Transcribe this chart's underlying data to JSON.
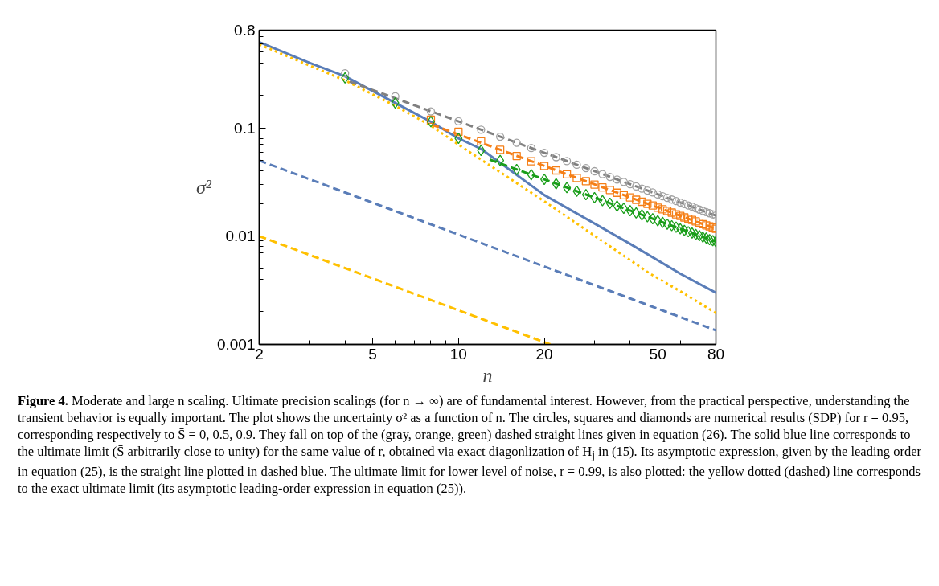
{
  "chart_data": {
    "type": "line",
    "xlabel": "n",
    "ylabel": "σ²",
    "log": "xy",
    "grid": false,
    "xlim": [
      2,
      80
    ],
    "xticks": [
      2,
      5,
      10,
      20,
      50,
      80
    ],
    "ylim": [
      0.001,
      0.8
    ],
    "yticks": [
      0.001,
      0.01,
      0.1,
      0.8
    ],
    "series": [
      {
        "line_style": "solid",
        "color": "#5a7db8",
        "x": [
          2,
          3,
          4,
          6,
          8,
          10,
          12,
          20,
          40,
          60,
          80
        ],
        "values": [
          0.62,
          0.4,
          0.3,
          0.17,
          0.114,
          0.08,
          0.064,
          0.024,
          0.0085,
          0.0045,
          0.003
        ]
      },
      {
        "line_style": "dotted",
        "color": "#ffc000",
        "x": [
          2,
          4,
          6,
          8,
          10,
          20,
          30,
          47,
          60,
          80
        ],
        "values": [
          0.59,
          0.275,
          0.16,
          0.105,
          0.07,
          0.021,
          0.0101,
          0.0045,
          0.0031,
          0.00195
        ]
      },
      {
        "line_style": "dashed",
        "color": "#5a7db8",
        "x": [
          2,
          80
        ],
        "values": [
          0.05,
          0.00135
        ]
      },
      {
        "line_style": "dashed",
        "color": "#ffc000",
        "x": [
          2,
          21
        ],
        "values": [
          0.01,
          0.001
        ]
      },
      {
        "line_style": "dashed",
        "color": "#808080",
        "x": [
          4.15,
          80
        ],
        "values": [
          0.268,
          0.0155
        ]
      },
      {
        "line_style": "dashed",
        "color": "#f57f17",
        "x": [
          8.07,
          80
        ],
        "values": [
          0.107,
          0.0117
        ]
      },
      {
        "line_style": "dashed",
        "color": "#1a9e1a",
        "x": [
          12.87,
          80
        ],
        "values": [
          0.051,
          0.0089
        ]
      },
      {
        "type": "scatter",
        "marker": "circle",
        "color": "#a0a0a0",
        "x": [
          4,
          6,
          8,
          10,
          12,
          14,
          16,
          18,
          20,
          22,
          24,
          26,
          28,
          30,
          32,
          34,
          36,
          38,
          40,
          42,
          44,
          46,
          48,
          50,
          52,
          54,
          56,
          58,
          60,
          62,
          64,
          66,
          68,
          70,
          72,
          74,
          76,
          78,
          80
        ],
        "values": [
          0.32,
          0.196,
          0.142,
          0.115,
          0.0964,
          0.083,
          0.0729,
          0.0652,
          0.0589,
          0.0537,
          0.0494,
          0.0457,
          0.0426,
          0.0398,
          0.0374,
          0.0353,
          0.0334,
          0.0317,
          0.0302,
          0.0288,
          0.0275,
          0.0264,
          0.0254,
          0.0243,
          0.0234,
          0.0226,
          0.0218,
          0.0211,
          0.0204,
          0.0198,
          0.0192,
          0.0187,
          0.0181,
          0.0176,
          0.0171,
          0.0167,
          0.0163,
          0.0159,
          0.0155
        ]
      },
      {
        "type": "scatter",
        "marker": "square",
        "color": "#f57f17",
        "x": [
          8,
          10,
          12,
          14,
          16,
          18,
          20,
          22,
          24,
          26,
          28,
          30,
          32,
          34,
          36,
          38,
          40,
          42,
          44,
          46,
          48,
          50,
          52,
          54,
          56,
          58,
          60,
          62,
          64,
          66,
          68,
          70,
          72,
          74,
          76,
          78,
          80
        ],
        "values": [
          0.119,
          0.092,
          0.075,
          0.0627,
          0.055,
          0.0492,
          0.0445,
          0.0405,
          0.0373,
          0.0345,
          0.0322,
          0.03,
          0.0282,
          0.0267,
          0.0252,
          0.0239,
          0.0228,
          0.0217,
          0.0208,
          0.0199,
          0.0192,
          0.0183,
          0.0177,
          0.0171,
          0.0165,
          0.0159,
          0.0154,
          0.0149,
          0.0145,
          0.0141,
          0.0137,
          0.0133,
          0.0129,
          0.0126,
          0.0123,
          0.012,
          0.0117
        ]
      },
      {
        "type": "scatter",
        "marker": "diamond",
        "color": "#1a9e1a",
        "x": [
          4,
          6,
          8,
          10,
          12,
          14,
          16,
          18,
          20,
          22,
          24,
          26,
          28,
          30,
          32,
          34,
          36,
          38,
          40,
          42,
          44,
          46,
          48,
          50,
          52,
          54,
          56,
          58,
          60,
          62,
          64,
          66,
          68,
          70,
          72,
          74,
          76,
          78,
          80
        ],
        "values": [
          0.29,
          0.17,
          0.114,
          0.08,
          0.062,
          0.05,
          0.0413,
          0.037,
          0.0335,
          0.0305,
          0.0281,
          0.026,
          0.0242,
          0.0227,
          0.0213,
          0.0201,
          0.019,
          0.0181,
          0.0172,
          0.0164,
          0.0157,
          0.0151,
          0.0145,
          0.0139,
          0.0134,
          0.0129,
          0.0125,
          0.0121,
          0.0117,
          0.0113,
          0.011,
          0.0107,
          0.0104,
          0.0101,
          0.0098,
          0.0096,
          0.0093,
          0.0091,
          0.0089
        ]
      }
    ],
    "annotations": [
      "Figure 4. Moderate and large n scaling. Ultimate precision scalings (for n → ∞) are of fundamental interest. However, from the practical perspective, understanding the transient behavior is equally important. The plot shows the uncertainty σ² as a function of n. The circles, squares and diamonds are numerical results (SDP) for r = 0.95, corresponding respectively to S̄ = 0, 0.5, 0.9. They fall on top of the (gray, orange, green) dashed straight lines given in equation (26). The solid blue line corresponds to the ultimate limit (S̄ arbitrarily close to unity) for the same value of r, obtained via exact diagonlization of H$_{j}$ in (15). Its asymptotic expression, given by the leading order in equation (25), is the straight line plotted in dashed blue. The ultimate limit for lower level of noise, r = 0.99, is also plotted: the yellow dotted (dashed) line corresponds to the exact ultimate limit (its asymptotic leading-order expression in equation (25))."
    ]
  }
}
